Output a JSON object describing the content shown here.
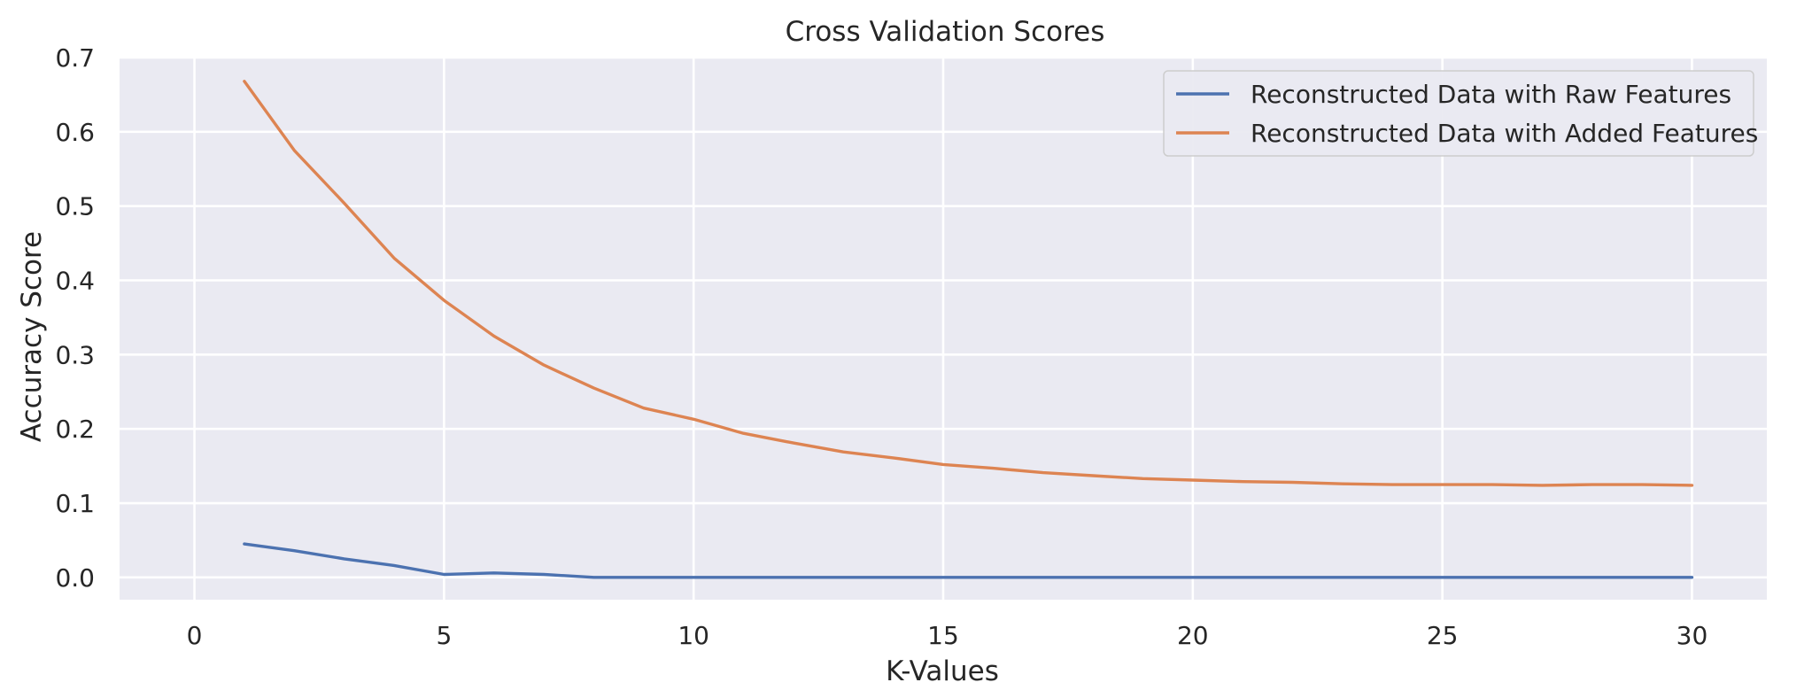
{
  "chart_data": {
    "type": "line",
    "title": "Cross Validation Scores",
    "xlabel": "K-Values",
    "ylabel": "Accuracy Score",
    "xlim": [
      -1.5,
      31.5
    ],
    "ylim": [
      -0.03,
      0.7
    ],
    "xticks": [
      "0",
      "5",
      "10",
      "15",
      "20",
      "25",
      "30"
    ],
    "xtick_values": [
      0,
      5,
      10,
      15,
      20,
      25,
      30
    ],
    "yticks": [
      "0.0",
      "0.1",
      "0.2",
      "0.3",
      "0.4",
      "0.5",
      "0.6",
      "0.7"
    ],
    "ytick_values": [
      0.0,
      0.1,
      0.2,
      0.3,
      0.4,
      0.5,
      0.6,
      0.7
    ],
    "grid": true,
    "legend_position": "top-right",
    "x": [
      1,
      2,
      3,
      4,
      5,
      6,
      7,
      8,
      9,
      10,
      11,
      12,
      13,
      14,
      15,
      16,
      17,
      18,
      19,
      20,
      21,
      22,
      23,
      24,
      25,
      26,
      27,
      28,
      29,
      30
    ],
    "series": [
      {
        "name": "Reconstructed Data with Raw Features",
        "color": "#4c72b0",
        "values": [
          0.045,
          0.036,
          0.025,
          0.016,
          0.004,
          0.006,
          0.004,
          0.0,
          0.0,
          0.0,
          0.0,
          0.0,
          0.0,
          0.0,
          0.0,
          0.0,
          0.0,
          0.0,
          0.0,
          0.0,
          0.0,
          0.0,
          0.0,
          0.0,
          0.0,
          0.0,
          0.0,
          0.0,
          0.0,
          0.0
        ]
      },
      {
        "name": "Reconstructed Data with Added Features",
        "color": "#dd8452",
        "values": [
          0.668,
          0.575,
          0.504,
          0.43,
          0.373,
          0.325,
          0.286,
          0.255,
          0.228,
          0.213,
          0.194,
          0.181,
          0.169,
          0.161,
          0.152,
          0.147,
          0.141,
          0.137,
          0.133,
          0.131,
          0.129,
          0.128,
          0.126,
          0.125,
          0.125,
          0.125,
          0.124,
          0.125,
          0.125,
          0.124
        ]
      }
    ]
  }
}
